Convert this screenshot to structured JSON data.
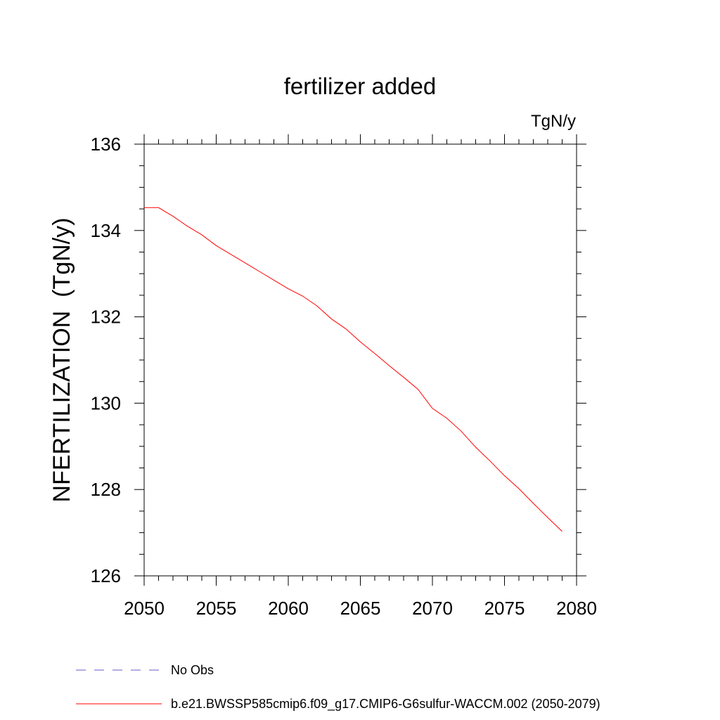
{
  "chart_data": {
    "type": "line",
    "title": "fertilizer added",
    "units_label": "TgN/y",
    "ylabel": "NFERTILIZATION  (TgN/y)",
    "xlabel": "",
    "xlim": [
      2050,
      2080
    ],
    "ylim": [
      126,
      136
    ],
    "x_ticks": [
      2050,
      2055,
      2060,
      2065,
      2070,
      2075,
      2080
    ],
    "y_ticks": [
      126,
      128,
      130,
      132,
      134,
      136
    ],
    "grid": false,
    "series": [
      {
        "name": "b.e21.BWSSP585cmip6.f09_g17.CMIP6-G6sulfur-WACCM.002 (2050-2079)",
        "color": "#ff0000",
        "dash": "solid",
        "x": [
          2050,
          2051,
          2052,
          2053,
          2054,
          2055,
          2056,
          2057,
          2058,
          2059,
          2060,
          2061,
          2062,
          2063,
          2064,
          2065,
          2066,
          2067,
          2068,
          2069,
          2070,
          2071,
          2072,
          2073,
          2074,
          2075,
          2076,
          2077,
          2078,
          2079
        ],
        "values": [
          134.53,
          134.53,
          134.33,
          134.1,
          133.9,
          133.65,
          133.45,
          133.25,
          133.05,
          132.85,
          132.65,
          132.48,
          132.25,
          131.95,
          131.72,
          131.42,
          131.15,
          130.87,
          130.6,
          130.32,
          129.88,
          129.65,
          129.35,
          128.98,
          128.66,
          128.32,
          128.02,
          127.68,
          127.35,
          127.03
        ]
      }
    ],
    "legend": [
      {
        "label": "No Obs",
        "color": "#6a5acd",
        "dash": "dashed"
      },
      {
        "label": "b.e21.BWSSP585cmip6.f09_g17.CMIP6-G6sulfur-WACCM.002 (2050-2079)",
        "color": "#ff0000",
        "dash": "solid"
      }
    ],
    "legend_position": "bottom"
  }
}
